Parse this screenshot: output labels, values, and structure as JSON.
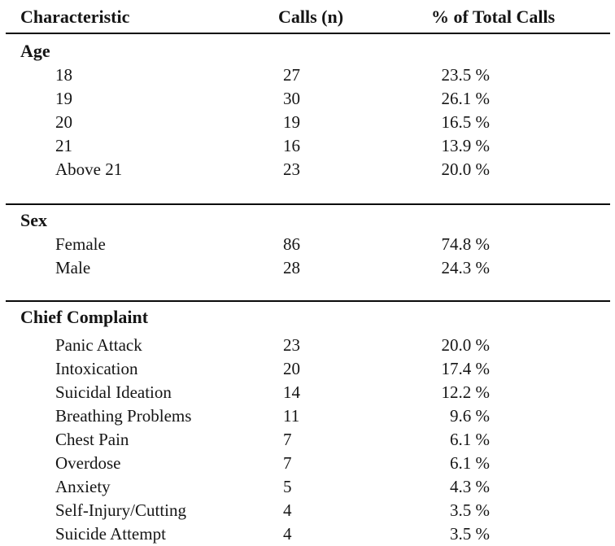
{
  "colors": {
    "background": "#ffffff",
    "text": "#151515",
    "rule": "#0a0a0a"
  },
  "table": {
    "headers": {
      "characteristic": "Characteristic",
      "calls": "Calls (n)",
      "percent": "% of Total Calls"
    },
    "sections": [
      {
        "title": "Age",
        "rows": [
          {
            "label": "18",
            "calls": "27",
            "percent": "23.5 %"
          },
          {
            "label": "19",
            "calls": "30",
            "percent": "26.1 %"
          },
          {
            "label": "20",
            "calls": "19",
            "percent": "16.5 %"
          },
          {
            "label": "21",
            "calls": "16",
            "percent": "13.9 %"
          },
          {
            "label": "Above 21",
            "calls": "23",
            "percent": "20.0 %"
          }
        ]
      },
      {
        "title": "Sex",
        "rows": [
          {
            "label": "Female",
            "calls": "86",
            "percent": "74.8 %"
          },
          {
            "label": "Male",
            "calls": "28",
            "percent": "24.3 %"
          }
        ]
      },
      {
        "title": "Chief Complaint",
        "rows": [
          {
            "label": "Panic Attack",
            "calls": "23",
            "percent": "20.0 %"
          },
          {
            "label": "Intoxication",
            "calls": "20",
            "percent": "17.4 %"
          },
          {
            "label": "Suicidal Ideation",
            "calls": "14",
            "percent": "12.2 %"
          },
          {
            "label": "Breathing Problems",
            "calls": "11",
            "percent": "9.6 %"
          },
          {
            "label": "Chest Pain",
            "calls": "7",
            "percent": "6.1 %"
          },
          {
            "label": "Overdose",
            "calls": "7",
            "percent": "6.1 %"
          },
          {
            "label": "Anxiety",
            "calls": "5",
            "percent": "4.3 %"
          },
          {
            "label": "Self-Injury/Cutting",
            "calls": "4",
            "percent": "3.5 %"
          },
          {
            "label": "Suicide Attempt",
            "calls": "4",
            "percent": "3.5 %"
          }
        ]
      }
    ]
  },
  "chart_data": {
    "type": "table",
    "title": "",
    "columns": [
      "Characteristic",
      "Calls (n)",
      "% of Total Calls"
    ],
    "groups": [
      {
        "group": "Age",
        "rows": [
          [
            "18",
            27,
            23.5
          ],
          [
            "19",
            30,
            26.1
          ],
          [
            "20",
            19,
            16.5
          ],
          [
            "21",
            16,
            13.9
          ],
          [
            "Above 21",
            23,
            20.0
          ]
        ]
      },
      {
        "group": "Sex",
        "rows": [
          [
            "Female",
            86,
            74.8
          ],
          [
            "Male",
            28,
            24.3
          ]
        ]
      },
      {
        "group": "Chief Complaint",
        "rows": [
          [
            "Panic Attack",
            23,
            20.0
          ],
          [
            "Intoxication",
            20,
            17.4
          ],
          [
            "Suicidal Ideation",
            14,
            12.2
          ],
          [
            "Breathing Problems",
            11,
            9.6
          ],
          [
            "Chest Pain",
            7,
            6.1
          ],
          [
            "Overdose",
            7,
            6.1
          ],
          [
            "Anxiety",
            5,
            4.3
          ],
          [
            "Self-Injury/Cutting",
            4,
            3.5
          ],
          [
            "Suicide Attempt",
            4,
            3.5
          ]
        ]
      }
    ]
  }
}
